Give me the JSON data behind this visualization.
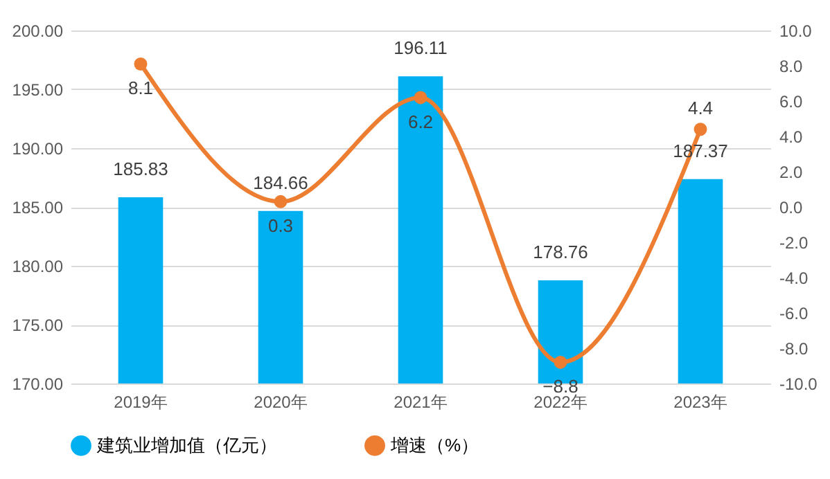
{
  "chart_data": {
    "type": "bar",
    "categories": [
      "2019年",
      "2020年",
      "2021年",
      "2022年",
      "2023年"
    ],
    "series": [
      {
        "name": "建筑业增加值（亿元）",
        "color": "#00b0f0",
        "values": [
          185.83,
          184.66,
          196.11,
          178.76,
          187.37
        ]
      },
      {
        "name": "增速（%）",
        "type": "line",
        "axis": "y2",
        "color": "#ed7d31",
        "values": [
          8.1,
          0.3,
          6.2,
          -8.8,
          4.4
        ]
      }
    ],
    "ylim": [
      170,
      200
    ],
    "yticks": [
      {
        "value": 170,
        "label": "170.00"
      },
      {
        "value": 175,
        "label": "175.00"
      },
      {
        "value": 180,
        "label": "180.00"
      },
      {
        "value": 185,
        "label": "185.00"
      },
      {
        "value": 190,
        "label": "190.00"
      },
      {
        "value": 195,
        "label": "195.00"
      },
      {
        "value": 200,
        "label": "200.00"
      }
    ],
    "y2lim": [
      -10,
      10
    ],
    "y2ticks": [
      {
        "value": -10,
        "label": "-10.0"
      },
      {
        "value": -8,
        "label": "-8.0"
      },
      {
        "value": -6,
        "label": "-6.0"
      },
      {
        "value": -4,
        "label": "-4.0"
      },
      {
        "value": -2,
        "label": "-2.0"
      },
      {
        "value": 0,
        "label": "0.0"
      },
      {
        "value": 2,
        "label": "2.0"
      },
      {
        "value": 4,
        "label": "4.0"
      },
      {
        "value": 6,
        "label": "6.0"
      },
      {
        "value": 8,
        "label": "8.0"
      },
      {
        "value": 10,
        "label": "10.0"
      }
    ],
    "grid": "y",
    "legend": "bottom",
    "marker": "circle",
    "data_labels": true
  }
}
